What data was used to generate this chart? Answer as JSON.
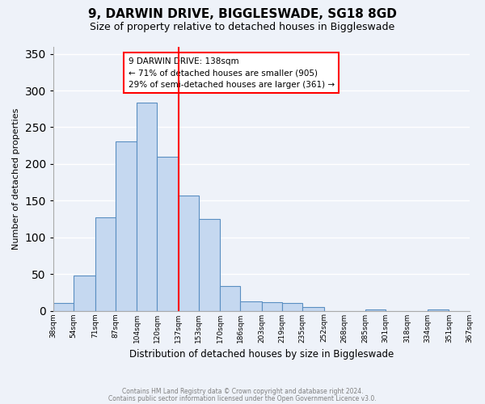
{
  "title": "9, DARWIN DRIVE, BIGGLESWADE, SG18 8GD",
  "subtitle": "Size of property relative to detached houses in Biggleswade",
  "xlabel": "Distribution of detached houses by size in Biggleswade",
  "ylabel": "Number of detached properties",
  "footer_line1": "Contains HM Land Registry data © Crown copyright and database right 2024.",
  "footer_line2": "Contains public sector information licensed under the Open Government Licence v3.0.",
  "bar_edges": [
    38,
    54,
    71,
    87,
    104,
    120,
    137,
    153,
    170,
    186,
    203,
    219,
    235,
    252,
    268,
    285,
    301,
    318,
    334,
    351,
    367
  ],
  "bar_heights": [
    11,
    48,
    127,
    231,
    284,
    210,
    157,
    125,
    34,
    13,
    12,
    10,
    5,
    0,
    0,
    2,
    0,
    0,
    2,
    0
  ],
  "bar_color": "#c5d8f0",
  "bar_edge_color": "#5a8fc2",
  "vline_x": 137,
  "vline_color": "red",
  "annotation_title": "9 DARWIN DRIVE: 138sqm",
  "annotation_line1": "← 71% of detached houses are smaller (905)",
  "annotation_line2": "29% of semi-detached houses are larger (361) →",
  "annotation_box_color": "white",
  "annotation_box_edge": "red",
  "ylim": [
    0,
    360
  ],
  "yticks": [
    0,
    50,
    100,
    150,
    200,
    250,
    300,
    350
  ],
  "tick_labels": [
    "38sqm",
    "54sqm",
    "71sqm",
    "87sqm",
    "104sqm",
    "120sqm",
    "137sqm",
    "153sqm",
    "170sqm",
    "186sqm",
    "203sqm",
    "219sqm",
    "235sqm",
    "252sqm",
    "268sqm",
    "285sqm",
    "301sqm",
    "318sqm",
    "334sqm",
    "351sqm",
    "367sqm"
  ],
  "bg_color": "#eef2f9"
}
